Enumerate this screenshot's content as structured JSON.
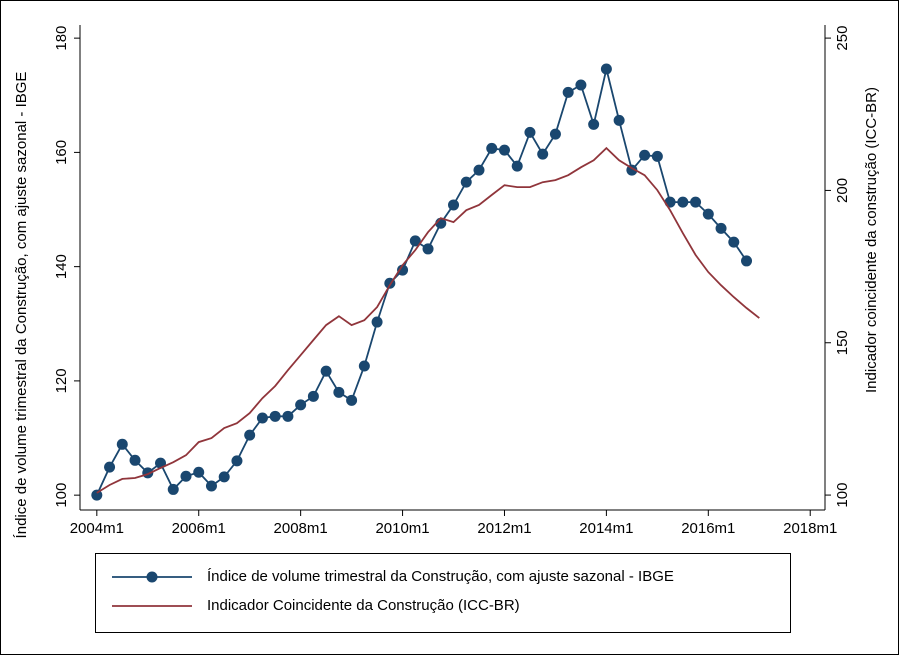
{
  "chart_data": {
    "type": "line",
    "ylabel": "Índice de volume trimestral da Construção, com ajuste sazonal - IBGE",
    "y2label": "Indicador coincidente da construção (ICC-BR)",
    "xlim": [
      2003.67,
      2018.29
    ],
    "xticks": [
      {
        "value": 2004,
        "label": "2004m1"
      },
      {
        "value": 2006,
        "label": "2006m1"
      },
      {
        "value": 2008,
        "label": "2008m1"
      },
      {
        "value": 2010,
        "label": "2010m1"
      },
      {
        "value": 2012,
        "label": "2012m1"
      },
      {
        "value": 2014,
        "label": "2014m1"
      },
      {
        "value": 2016,
        "label": "2016m1"
      },
      {
        "value": 2018,
        "label": "2018m1"
      }
    ],
    "ylim": [
      97.4,
      182.3
    ],
    "yticks": [
      100,
      120,
      140,
      160,
      180
    ],
    "y2lim": [
      95.1,
      254.3
    ],
    "y2ticks": [
      100,
      150,
      200,
      250
    ],
    "series": [
      {
        "name": "Índice de volume trimestral da Construção, com ajuste sazonal - IBGE",
        "color": "#1a476f",
        "marker": true,
        "x": [
          2004,
          2004.25,
          2004.5,
          2004.75,
          2005,
          2005.25,
          2005.5,
          2005.75,
          2006,
          2006.25,
          2006.5,
          2006.75,
          2007,
          2007.25,
          2007.5,
          2007.75,
          2008,
          2008.25,
          2008.5,
          2008.75,
          2009,
          2009.25,
          2009.5,
          2009.75,
          2010,
          2010.25,
          2010.5,
          2010.75,
          2011,
          2011.25,
          2011.5,
          2011.75,
          2012,
          2012.25,
          2012.5,
          2012.75,
          2013,
          2013.25,
          2013.5,
          2013.75,
          2014,
          2014.25,
          2014.5,
          2014.75,
          2015,
          2015.25,
          2015.5,
          2015.75,
          2016,
          2016.25,
          2016.5,
          2016.75
        ],
        "values": [
          100,
          104.9,
          108.9,
          106.1,
          103.9,
          105.6,
          101.0,
          103.3,
          104.0,
          101.6,
          103.2,
          106.0,
          110.5,
          113.5,
          113.8,
          113.8,
          115.8,
          117.3,
          121.7,
          118.0,
          116.6,
          122.6,
          130.3,
          137.1,
          139.4,
          144.5,
          143.1,
          147.6,
          150.8,
          154.8,
          156.9,
          160.7,
          160.4,
          157.6,
          163.5,
          159.7,
          163.2,
          170.5,
          171.8,
          164.9,
          174.6,
          165.6,
          156.9,
          159.5,
          159.3,
          151.3,
          151.3,
          151.3,
          149.2,
          146.7,
          144.3,
          141.0
        ]
      },
      {
        "name": "Indicador Coincidente da Construção (ICC-BR)",
        "color": "#90353b",
        "marker": false,
        "axis": "y2",
        "x": [
          2004,
          2004.25,
          2004.5,
          2004.75,
          2005,
          2005.25,
          2005.5,
          2005.75,
          2006,
          2006.25,
          2006.5,
          2006.75,
          2007,
          2007.25,
          2007.5,
          2007.75,
          2008,
          2008.25,
          2008.5,
          2008.75,
          2009,
          2009.25,
          2009.5,
          2009.75,
          2010,
          2010.25,
          2010.5,
          2010.75,
          2011,
          2011.25,
          2011.5,
          2011.75,
          2012,
          2012.25,
          2012.5,
          2012.75,
          2013,
          2013.25,
          2013.5,
          2013.75,
          2014,
          2014.25,
          2014.5,
          2014.75,
          2015,
          2015.25,
          2015.5,
          2015.75,
          2016,
          2016.25,
          2016.5,
          2016.75,
          2017
        ],
        "values": [
          100.7,
          103.3,
          105.3,
          105.6,
          106.9,
          108.9,
          110.8,
          113.1,
          117.4,
          118.7,
          122.0,
          123.6,
          126.9,
          131.8,
          135.8,
          141.0,
          145.9,
          150.9,
          155.8,
          158.7,
          155.8,
          157.4,
          161.7,
          168.9,
          175.5,
          180.4,
          186.3,
          190.9,
          189.6,
          193.5,
          195.2,
          198.5,
          201.7,
          201.1,
          201.1,
          202.7,
          203.4,
          205.0,
          207.6,
          209.9,
          213.9,
          209.9,
          207.3,
          205.0,
          200.1,
          193.5,
          186.0,
          178.8,
          173.2,
          168.9,
          165.0,
          161.4,
          158.1
        ]
      }
    ]
  }
}
